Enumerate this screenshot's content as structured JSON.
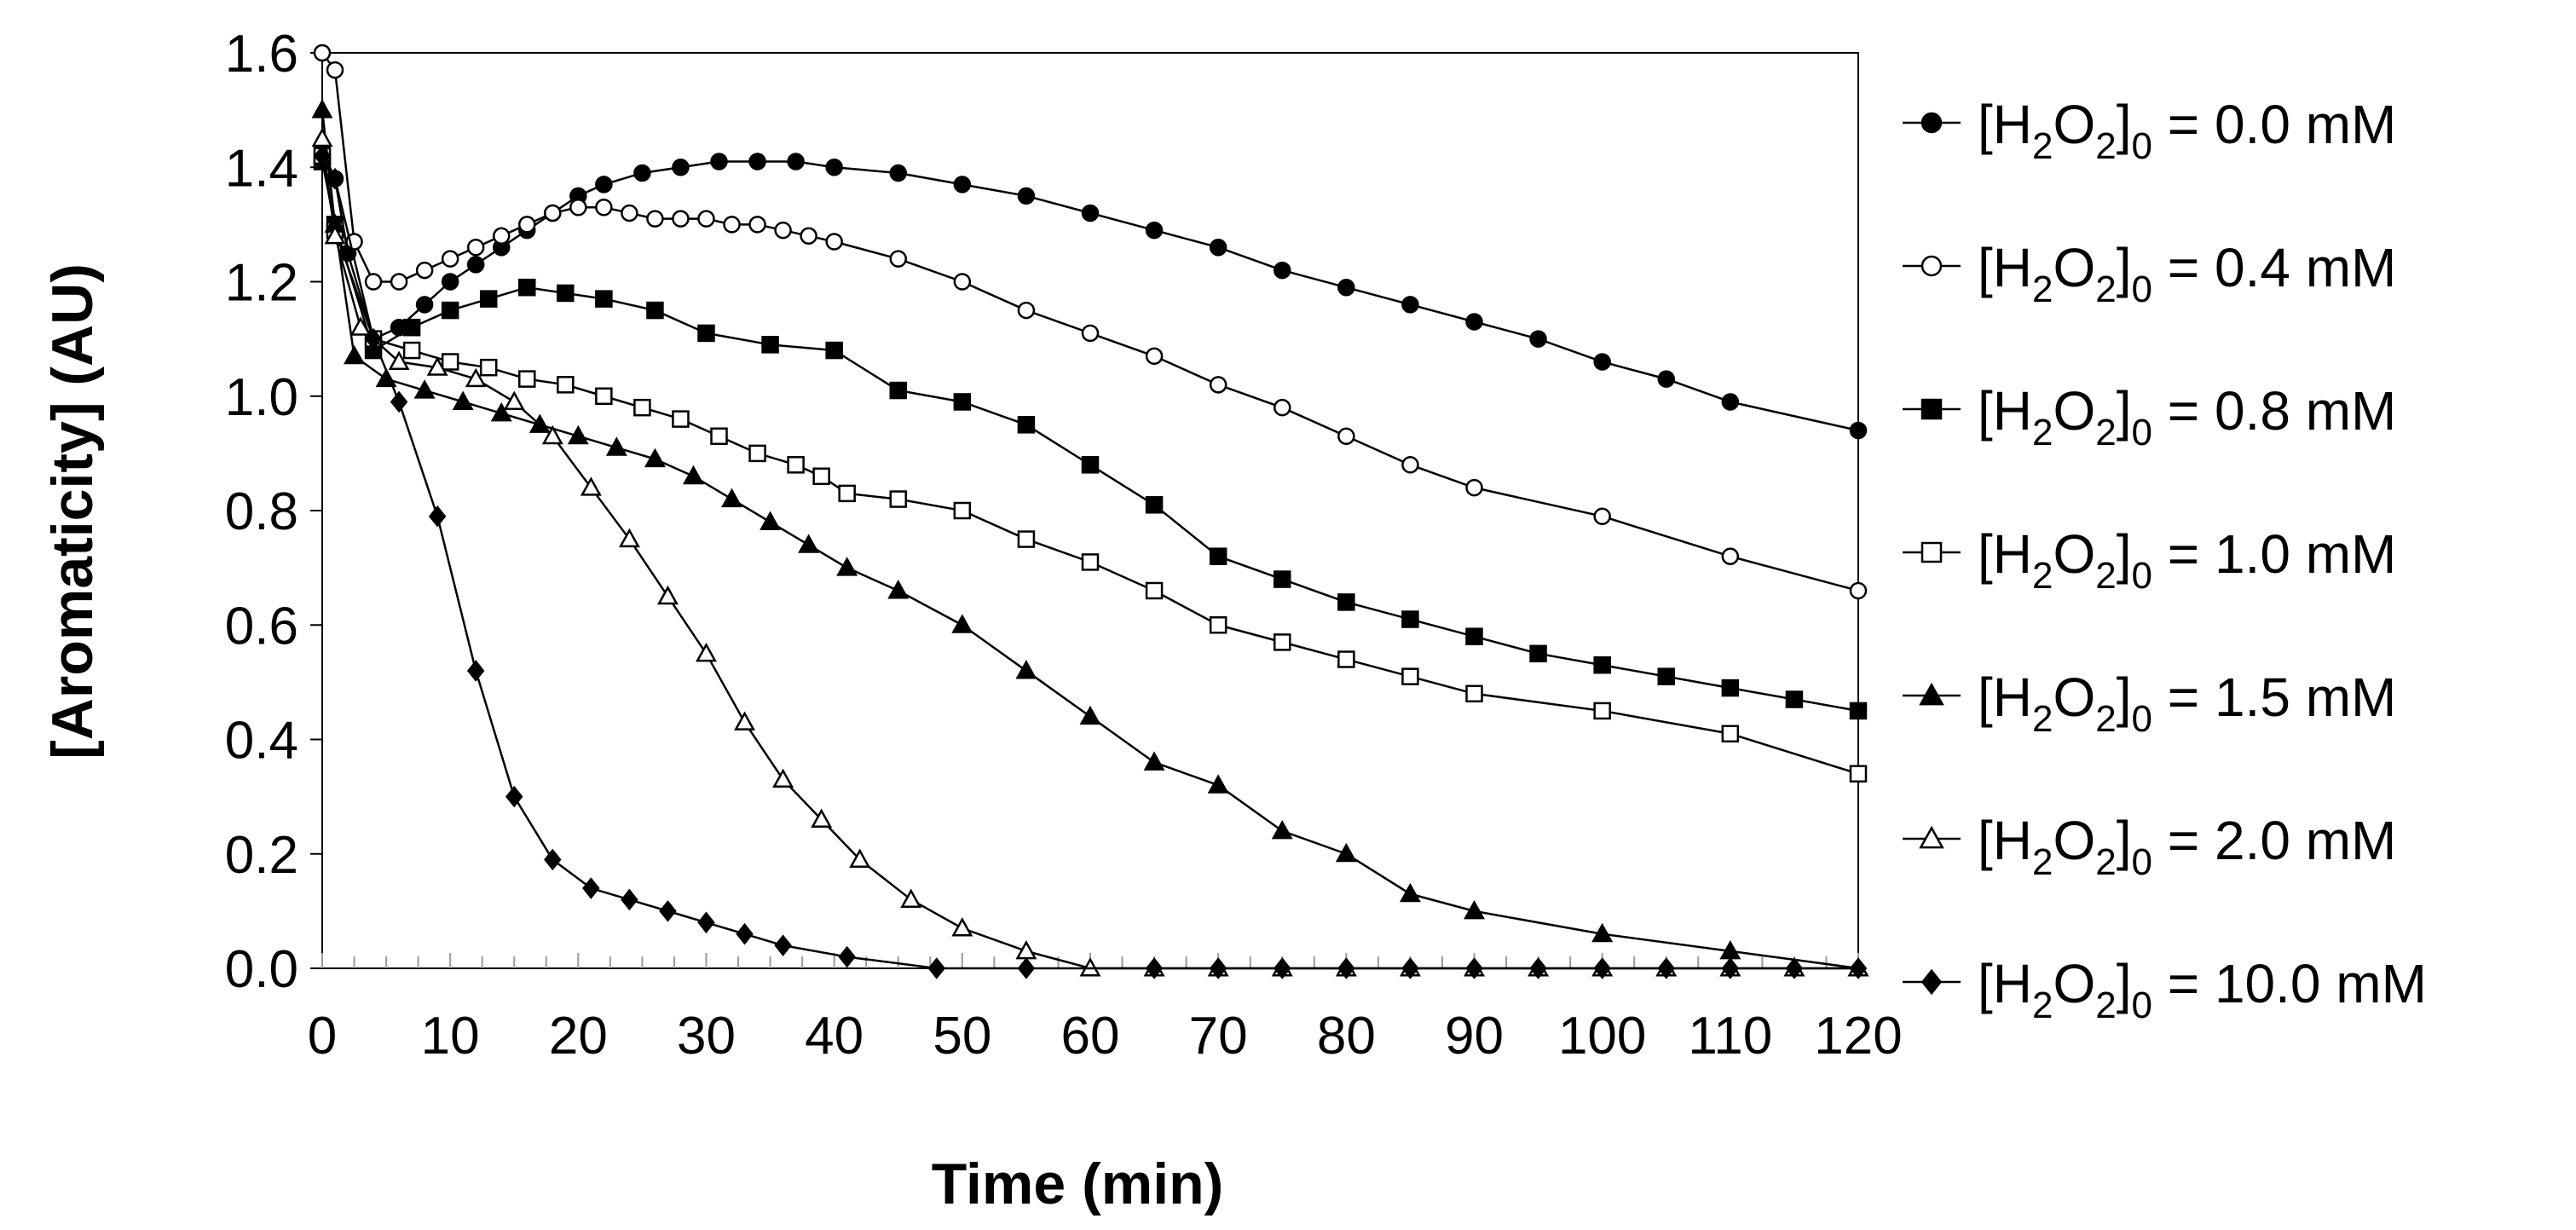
{
  "chart_data": {
    "type": "line",
    "title": "",
    "xlabel": "Time (min)",
    "ylabel": "[Aromaticity] (AU)",
    "xlim": [
      0,
      120
    ],
    "ylim": [
      0,
      1.6
    ],
    "xticks": [
      "0",
      "10",
      "20",
      "30",
      "40",
      "50",
      "60",
      "70",
      "80",
      "90",
      "100",
      "110",
      "120"
    ],
    "yticks": [
      "0.0",
      "0.2",
      "0.4",
      "0.6",
      "0.8",
      "1.0",
      "1.2",
      "1.4",
      "1.6"
    ],
    "grid": false,
    "legend_position": "right",
    "series": [
      {
        "name": "0.0",
        "legend": {
          "prefix": "[H",
          "sub1": "2",
          "mid": "O",
          "sub2": "2",
          "close": "]",
          "sub3": "0",
          "suffix": " = 0.0 mM"
        },
        "marker": "circle-filled",
        "x": [
          0,
          1,
          2,
          4,
          6,
          8,
          10,
          12,
          14,
          16,
          18,
          20,
          22,
          25,
          28,
          31,
          34,
          37,
          40,
          45,
          50,
          55,
          60,
          65,
          70,
          75,
          80,
          85,
          90,
          95,
          100,
          105,
          110,
          120
        ],
        "y": [
          1.43,
          1.38,
          1.25,
          1.1,
          1.12,
          1.16,
          1.2,
          1.23,
          1.26,
          1.29,
          1.32,
          1.35,
          1.37,
          1.39,
          1.4,
          1.41,
          1.41,
          1.41,
          1.4,
          1.39,
          1.37,
          1.35,
          1.32,
          1.29,
          1.26,
          1.22,
          1.19,
          1.16,
          1.13,
          1.1,
          1.06,
          1.03,
          0.99,
          0.94
        ]
      },
      {
        "name": "0.4",
        "legend": {
          "prefix": "[H",
          "sub1": "2",
          "mid": "O",
          "sub2": "2",
          "close": "]",
          "sub3": "0",
          "suffix": " = 0.4 mM"
        },
        "marker": "circle-open",
        "x": [
          0,
          1,
          2.5,
          4,
          6,
          8,
          10,
          12,
          14,
          16,
          18,
          20,
          22,
          24,
          26,
          28,
          30,
          32,
          34,
          36,
          38,
          40,
          45,
          50,
          55,
          60,
          65,
          70,
          75,
          80,
          85,
          90,
          100,
          110,
          120
        ],
        "y": [
          1.6,
          1.57,
          1.27,
          1.2,
          1.2,
          1.22,
          1.24,
          1.26,
          1.28,
          1.3,
          1.32,
          1.33,
          1.33,
          1.32,
          1.31,
          1.31,
          1.31,
          1.3,
          1.3,
          1.29,
          1.28,
          1.27,
          1.24,
          1.2,
          1.15,
          1.11,
          1.07,
          1.02,
          0.98,
          0.93,
          0.88,
          0.84,
          0.79,
          0.72,
          0.66
        ]
      },
      {
        "name": "0.8",
        "legend": {
          "prefix": "[H",
          "sub1": "2",
          "mid": "O",
          "sub2": "2",
          "close": "]",
          "sub3": "0",
          "suffix": " = 0.8 mM"
        },
        "marker": "square-filled",
        "x": [
          0,
          1,
          4,
          7,
          10,
          13,
          16,
          19,
          22,
          26,
          30,
          35,
          40,
          45,
          50,
          55,
          60,
          65,
          70,
          75,
          80,
          85,
          90,
          95,
          100,
          105,
          110,
          115,
          120
        ],
        "y": [
          1.41,
          1.3,
          1.08,
          1.12,
          1.15,
          1.17,
          1.19,
          1.18,
          1.17,
          1.15,
          1.11,
          1.09,
          1.08,
          1.01,
          0.99,
          0.95,
          0.88,
          0.81,
          0.72,
          0.68,
          0.64,
          0.61,
          0.58,
          0.55,
          0.53,
          0.51,
          0.49,
          0.47,
          0.45
        ]
      },
      {
        "name": "1.0",
        "legend": {
          "prefix": "[H",
          "sub1": "2",
          "mid": "O",
          "sub2": "2",
          "close": "]",
          "sub3": "0",
          "suffix": " = 1.0 mM"
        },
        "marker": "square-open",
        "x": [
          0,
          1,
          4,
          7,
          10,
          13,
          16,
          19,
          22,
          25,
          28,
          31,
          34,
          37,
          39,
          41,
          45,
          50,
          55,
          60,
          65,
          70,
          75,
          80,
          85,
          90,
          100,
          110,
          120
        ],
        "y": [
          1.42,
          1.29,
          1.1,
          1.08,
          1.06,
          1.05,
          1.03,
          1.02,
          1.0,
          0.98,
          0.96,
          0.93,
          0.9,
          0.88,
          0.86,
          0.83,
          0.82,
          0.8,
          0.75,
          0.71,
          0.66,
          0.6,
          0.57,
          0.54,
          0.51,
          0.48,
          0.45,
          0.41,
          0.34
        ]
      },
      {
        "name": "1.5",
        "legend": {
          "prefix": "[H",
          "sub1": "2",
          "mid": "O",
          "sub2": "2",
          "close": "]",
          "sub3": "0",
          "suffix": " = 1.5 mM"
        },
        "marker": "triangle-filled",
        "x": [
          0,
          1,
          2.5,
          5,
          8,
          11,
          14,
          17,
          20,
          23,
          26,
          29,
          32,
          35,
          38,
          41,
          45,
          50,
          55,
          60,
          65,
          70,
          75,
          80,
          85,
          90,
          100,
          110,
          120
        ],
        "y": [
          1.5,
          1.3,
          1.07,
          1.03,
          1.01,
          0.99,
          0.97,
          0.95,
          0.93,
          0.91,
          0.89,
          0.86,
          0.82,
          0.78,
          0.74,
          0.7,
          0.66,
          0.6,
          0.52,
          0.44,
          0.36,
          0.32,
          0.24,
          0.2,
          0.13,
          0.1,
          0.06,
          0.03,
          0.0
        ]
      },
      {
        "name": "2.0",
        "legend": {
          "prefix": "[H",
          "sub1": "2",
          "mid": "O",
          "sub2": "2",
          "close": "]",
          "sub3": "0",
          "suffix": " = 2.0 mM"
        },
        "marker": "triangle-open",
        "x": [
          0,
          1,
          3,
          6,
          9,
          12,
          15,
          18,
          21,
          24,
          27,
          30,
          33,
          36,
          39,
          42,
          46,
          50,
          55,
          60,
          65,
          70,
          75,
          80,
          85,
          90,
          95,
          100,
          105,
          110,
          115,
          120
        ],
        "y": [
          1.45,
          1.28,
          1.12,
          1.06,
          1.05,
          1.03,
          0.99,
          0.93,
          0.84,
          0.75,
          0.65,
          0.55,
          0.43,
          0.33,
          0.26,
          0.19,
          0.12,
          0.07,
          0.03,
          0.0,
          0.0,
          0.0,
          0.0,
          0.0,
          0.0,
          0.0,
          0.0,
          0.0,
          0.0,
          0.0,
          0.0,
          0.0
        ]
      },
      {
        "name": "10.0",
        "legend": {
          "prefix": "[H",
          "sub1": "2",
          "mid": "O",
          "sub2": "2",
          "close": "]",
          "sub3": "0",
          "suffix": " = 10.0 mM"
        },
        "marker": "diamond-filled",
        "x": [
          0,
          1,
          4,
          6,
          9,
          12,
          15,
          18,
          21,
          24,
          27,
          30,
          33,
          36,
          41,
          48,
          55,
          65,
          70,
          75,
          80,
          85,
          90,
          95,
          100,
          105,
          110,
          115,
          120
        ],
        "y": [
          1.42,
          1.38,
          1.1,
          0.99,
          0.79,
          0.52,
          0.3,
          0.19,
          0.14,
          0.12,
          0.1,
          0.08,
          0.06,
          0.04,
          0.02,
          0.0,
          0.0,
          0.0,
          0.0,
          0.0,
          0.0,
          0.0,
          0.0,
          0.0,
          0.0,
          0.0,
          0.0,
          0.0,
          0.0
        ]
      }
    ]
  }
}
